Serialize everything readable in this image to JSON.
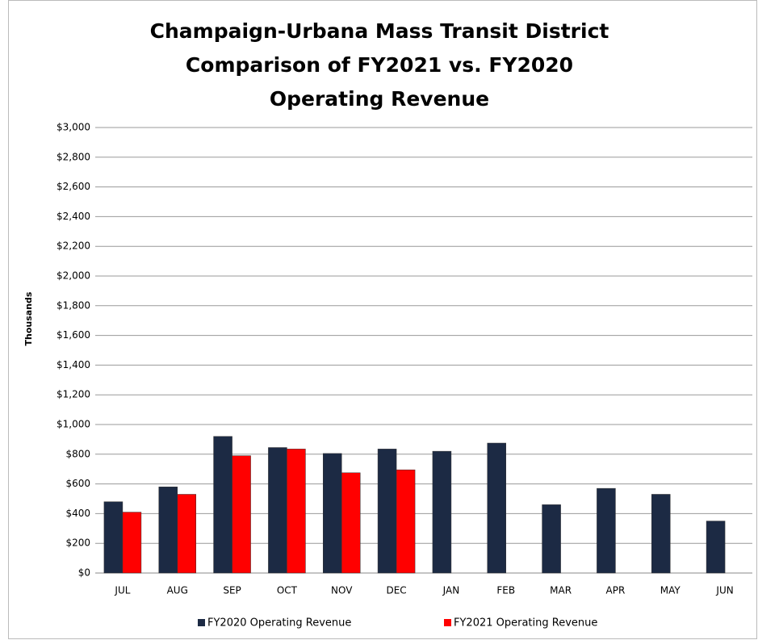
{
  "chart_data": {
    "type": "bar",
    "title": [
      "Champaign-Urbana Mass Transit District",
      "Comparison of FY2021 vs. FY2020",
      "Operating Revenue"
    ],
    "y_label": "Thousands",
    "categories": [
      "JUL",
      "AUG",
      "SEP",
      "OCT",
      "NOV",
      "DEC",
      "JAN",
      "FEB",
      "MAR",
      "APR",
      "MAY",
      "JUN"
    ],
    "series": [
      {
        "name": "FY2020 Operating Revenue",
        "color": "#1c2a44",
        "values": [
          480,
          580,
          920,
          845,
          805,
          835,
          820,
          875,
          460,
          570,
          530,
          350
        ]
      },
      {
        "name": "FY2021 Operating Revenue",
        "color": "#ff0000",
        "values": [
          410,
          530,
          790,
          835,
          675,
          695,
          null,
          null,
          null,
          null,
          null,
          null
        ]
      }
    ],
    "ylim": [
      0,
      3000
    ],
    "yticks": [
      {
        "value": 0,
        "label": "$0"
      },
      {
        "value": 200,
        "label": "$200"
      },
      {
        "value": 400,
        "label": "$400"
      },
      {
        "value": 600,
        "label": "$600"
      },
      {
        "value": 800,
        "label": "$800"
      },
      {
        "value": 1000,
        "label": "$1,000"
      },
      {
        "value": 1200,
        "label": "$1,200"
      },
      {
        "value": 1400,
        "label": "$1,400"
      },
      {
        "value": 1600,
        "label": "$1,600"
      },
      {
        "value": 1800,
        "label": "$1,800"
      },
      {
        "value": 2000,
        "label": "$2,000"
      },
      {
        "value": 2200,
        "label": "$2,200"
      },
      {
        "value": 2400,
        "label": "$2,400"
      },
      {
        "value": 2600,
        "label": "$2,600"
      },
      {
        "value": 2800,
        "label": "$2,800"
      },
      {
        "value": 3000,
        "label": "$3,000"
      }
    ],
    "grid": true,
    "legend": "bottom"
  }
}
